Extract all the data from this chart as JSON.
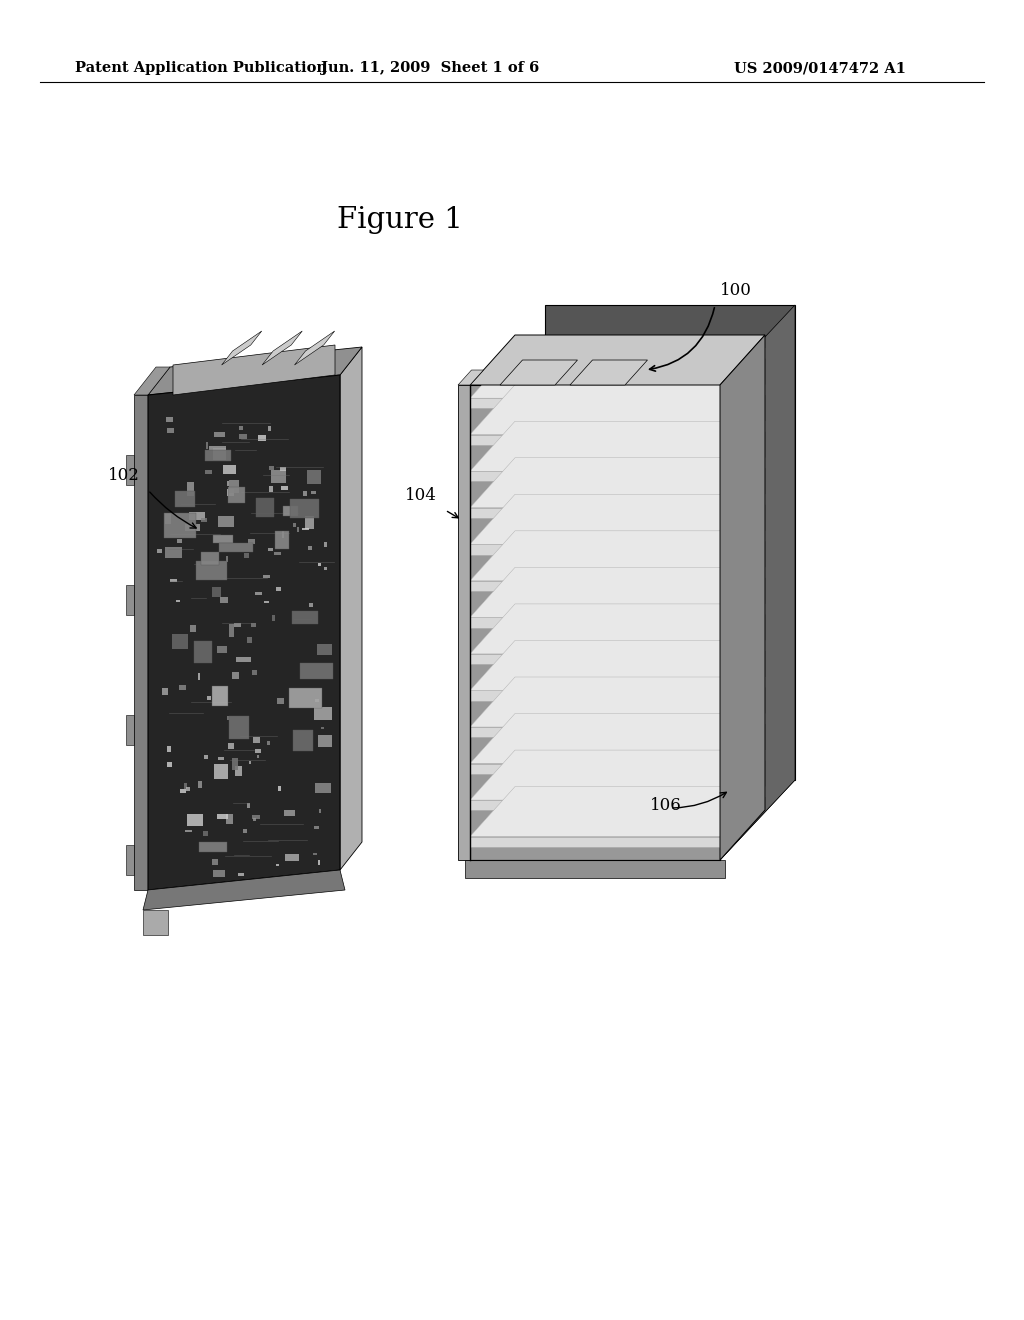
{
  "background_color": "#ffffff",
  "header_left": "Patent Application Publication",
  "header_center": "Jun. 11, 2009  Sheet 1 of 6",
  "header_right": "US 2009/0147472 A1",
  "figure_title": "Figure 1",
  "header_fontsize": 10.5,
  "figure_title_fontsize": 21,
  "label_fontsize": 12,
  "image_embedded": true
}
